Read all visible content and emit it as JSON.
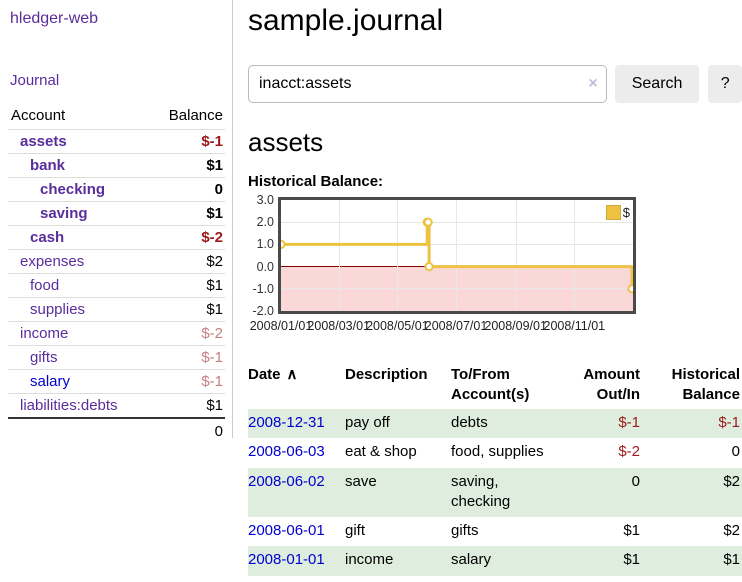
{
  "app": {
    "title": "hledger-web",
    "nav_journal": "Journal"
  },
  "sidebar": {
    "accounts_table": {
      "col_account": "Account",
      "col_balance": "Balance",
      "rows": [
        {
          "account": "assets",
          "balance": "$-1"
        },
        {
          "account": "bank",
          "balance": "$1"
        },
        {
          "account": "checking",
          "balance": "0"
        },
        {
          "account": "saving",
          "balance": "$1"
        },
        {
          "account": "cash",
          "balance": "$-2"
        },
        {
          "account": "expenses",
          "balance": "$2"
        },
        {
          "account": "food",
          "balance": "$1"
        },
        {
          "account": "supplies",
          "balance": "$1"
        },
        {
          "account": "income",
          "balance": "$-2"
        },
        {
          "account": "gifts",
          "balance": "$-1"
        },
        {
          "account": "salary",
          "balance": "$-1"
        },
        {
          "account": "liabilities:debts",
          "balance": "$1"
        }
      ],
      "total": "0"
    }
  },
  "main": {
    "title": "sample.journal",
    "search": {
      "value": "inacct:assets",
      "clear_icon": "×",
      "search_button": "Search",
      "help_button": "?"
    },
    "account_heading": "assets",
    "chart_label": "Historical Balance:",
    "register": {
      "col_date": "Date",
      "sort_asc_icon": "∧",
      "col_description": "Description",
      "col_accounts": "To/From Account(s)",
      "col_amount": "Amount Out/In",
      "col_balance": "Historical Balance",
      "rows": [
        {
          "date": "2008-12-31",
          "description": "pay off",
          "accounts": "debts",
          "amount": "$-1",
          "balance": "$-1"
        },
        {
          "date": "2008-06-03",
          "description": "eat & shop",
          "accounts": "food, supplies",
          "amount": "$-2",
          "balance": "0"
        },
        {
          "date": "2008-06-02",
          "description": "save",
          "accounts": "saving, checking",
          "amount": "0",
          "balance": "$2"
        },
        {
          "date": "2008-06-01",
          "description": "gift",
          "accounts": "gifts",
          "amount": "$1",
          "balance": "$2"
        },
        {
          "date": "2008-01-01",
          "description": "income",
          "accounts": "salary",
          "amount": "$1",
          "balance": "$1"
        }
      ]
    }
  },
  "colors": {
    "link_purple": "#5a2d9c",
    "link_blue": "#0000d0",
    "negative_strong": "#9b1a1a",
    "negative_soft": "#c27f7f",
    "row_stripe_green": "#deedde",
    "series_gold": "#edc240",
    "chart_negative_fill": "#fbd8d8",
    "chart_zero_line": "#8b0000"
  },
  "chart_data": {
    "type": "line",
    "step": true,
    "title": "Historical Balance:",
    "series": [
      {
        "name": "$",
        "color": "#edc240",
        "points": [
          [
            "2008-01-01",
            1
          ],
          [
            "2008-06-01",
            2
          ],
          [
            "2008-06-02",
            2
          ],
          [
            "2008-06-03",
            0
          ],
          [
            "2008-12-31",
            -1
          ]
        ]
      }
    ],
    "xrange": [
      "2008-01-01",
      "2009-01-01"
    ],
    "ylim": [
      -2,
      3
    ],
    "yticks": [
      3,
      2,
      1,
      0,
      -1,
      -2
    ],
    "ytick_labels": [
      "3.0",
      "2.0",
      "1.0",
      "0.0",
      "-1.0",
      "-2.0"
    ],
    "xticks": [
      "2008/01/01",
      "2008/03/01",
      "2008/05/01",
      "2008/07/01",
      "2008/09/01",
      "2008/11/01"
    ],
    "legend": "$",
    "legend_position": "top-right",
    "grid": true,
    "negative_region_color": "#fbd8d8",
    "zero_line_color": "#8b0000"
  }
}
